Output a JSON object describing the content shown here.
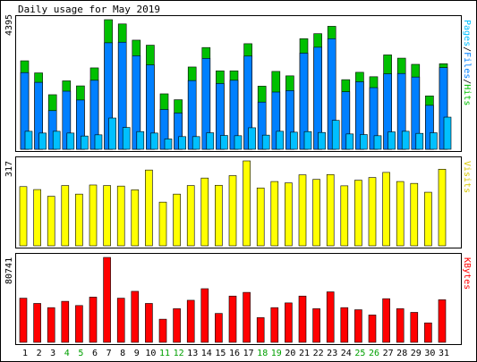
{
  "title": "Daily usage for May 2019",
  "colors": {
    "hits": "#00c000",
    "files": "#0080ff",
    "pages": "#00c0ff",
    "visits": "#ffff00",
    "kbytes": "#ff0000",
    "weekend_label": "#00a000",
    "weekday_label": "#000000"
  },
  "chart_data": [
    {
      "type": "bar",
      "title": "",
      "axis_max_label": "4395",
      "legend": [
        "Pages",
        "Files",
        "Hits"
      ],
      "legend_sep": "/",
      "categories": [
        "1",
        "2",
        "3",
        "4",
        "5",
        "6",
        "7",
        "8",
        "9",
        "10",
        "11",
        "12",
        "13",
        "14",
        "15",
        "16",
        "17",
        "18",
        "19",
        "20",
        "21",
        "22",
        "23",
        "24",
        "25",
        "26",
        "27",
        "28",
        "29",
        "30",
        "31"
      ],
      "weekend": [
        false,
        false,
        false,
        true,
        true,
        false,
        false,
        false,
        false,
        false,
        true,
        true,
        false,
        false,
        false,
        false,
        false,
        true,
        true,
        false,
        false,
        false,
        false,
        false,
        true,
        true,
        false,
        false,
        false,
        false,
        false
      ],
      "ylim": [
        0,
        4395
      ],
      "series": [
        {
          "name": "Hits",
          "values": [
            3000,
            2590,
            1850,
            2320,
            2150,
            2760,
            4395,
            4250,
            3700,
            3530,
            1880,
            1680,
            2790,
            3450,
            2660,
            2660,
            3580,
            2140,
            2640,
            2490,
            3750,
            3920,
            4170,
            2360,
            2610,
            2460,
            3200,
            3090,
            2880,
            1810,
            2900
          ]
        },
        {
          "name": "Files",
          "values": [
            2600,
            2270,
            1310,
            1970,
            1670,
            2340,
            3610,
            3630,
            3170,
            2860,
            1350,
            1230,
            2330,
            3080,
            2230,
            2340,
            3160,
            1600,
            1940,
            1990,
            3260,
            3460,
            3750,
            1950,
            2290,
            2090,
            2560,
            2570,
            2450,
            1490,
            2770
          ]
        },
        {
          "name": "Pages",
          "values": [
            610,
            550,
            610,
            550,
            450,
            490,
            1060,
            740,
            600,
            550,
            350,
            430,
            430,
            560,
            470,
            460,
            730,
            480,
            610,
            580,
            600,
            570,
            980,
            520,
            500,
            460,
            590,
            610,
            540,
            560,
            1090
          ]
        }
      ]
    },
    {
      "type": "bar",
      "title": "",
      "axis_max_label": "317",
      "legend": [
        "Visits"
      ],
      "categories": [
        "1",
        "2",
        "3",
        "4",
        "5",
        "6",
        "7",
        "8",
        "9",
        "10",
        "11",
        "12",
        "13",
        "14",
        "15",
        "16",
        "17",
        "18",
        "19",
        "20",
        "21",
        "22",
        "23",
        "24",
        "25",
        "26",
        "27",
        "28",
        "29",
        "30",
        "31"
      ],
      "ylim": [
        0,
        317
      ],
      "series": [
        {
          "name": "Visits",
          "values": [
            221,
            210,
            185,
            225,
            193,
            227,
            225,
            223,
            209,
            283,
            163,
            193,
            225,
            253,
            226,
            262,
            317,
            216,
            240,
            235,
            265,
            248,
            266,
            224,
            245,
            255,
            274,
            240,
            233,
            200,
            286
          ]
        }
      ]
    },
    {
      "type": "bar",
      "title": "",
      "axis_max_label": "80741",
      "legend": [
        "KBytes"
      ],
      "categories": [
        "1",
        "2",
        "3",
        "4",
        "5",
        "6",
        "7",
        "8",
        "9",
        "10",
        "11",
        "12",
        "13",
        "14",
        "15",
        "16",
        "17",
        "18",
        "19",
        "20",
        "21",
        "22",
        "23",
        "24",
        "25",
        "26",
        "27",
        "28",
        "29",
        "30",
        "31"
      ],
      "ylim": [
        0,
        80741
      ],
      "series": [
        {
          "name": "KBytes",
          "values": [
            42000,
            37000,
            33000,
            39000,
            35000,
            43000,
            80741,
            42000,
            48500,
            37000,
            22000,
            32000,
            40000,
            51000,
            27500,
            44000,
            47500,
            23500,
            33000,
            37500,
            44000,
            32000,
            48000,
            33000,
            31000,
            26000,
            41500,
            32000,
            28500,
            18500,
            40500
          ]
        }
      ]
    }
  ]
}
